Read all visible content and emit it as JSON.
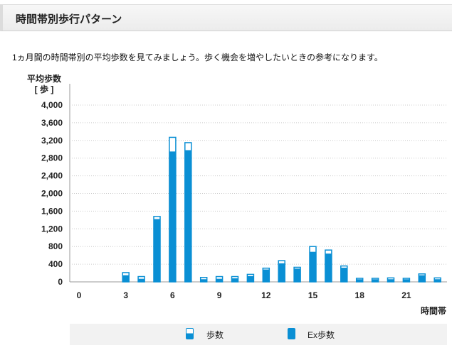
{
  "header": {
    "title": "時間帯別歩行パターン"
  },
  "description": "1ヵ月間の時間帯別の平均歩数を見てみましょう。歩く機会を増やしたいときの参考になります。",
  "colors": {
    "bar_fill": "#0a8fd4",
    "bar_top": "#ffffff",
    "grid": "#cccccc",
    "legend_bg": "#f2f2f2"
  },
  "chart_data": {
    "type": "bar",
    "title": "",
    "ylabel": "平均歩数",
    "ylabel_unit": "[ 歩 ]",
    "xlabel": "時間帯",
    "ylim": [
      0,
      4000
    ],
    "yticks": [
      "0",
      "400",
      "800",
      "1,200",
      "1,600",
      "2,000",
      "2,400",
      "2,800",
      "3,200",
      "3,600",
      "4,000"
    ],
    "ytick_values": [
      0,
      400,
      800,
      1200,
      1600,
      2000,
      2400,
      2800,
      3200,
      3600,
      4000
    ],
    "xticks": [
      "0",
      "3",
      "6",
      "9",
      "12",
      "15",
      "18",
      "21"
    ],
    "xtick_values": [
      0,
      3,
      6,
      9,
      12,
      15,
      18,
      21
    ],
    "grid": true,
    "legend_position": "bottom",
    "x": [
      0,
      1,
      2,
      3,
      4,
      5,
      6,
      7,
      8,
      9,
      10,
      11,
      12,
      13,
      14,
      15,
      16,
      17,
      18,
      19,
      20,
      21,
      22,
      23
    ],
    "series": [
      {
        "name": "歩数",
        "values": [
          0,
          0,
          0,
          210,
          120,
          1480,
          3270,
          3150,
          100,
          120,
          120,
          170,
          310,
          480,
          330,
          800,
          720,
          360,
          80,
          80,
          90,
          80,
          180,
          90
        ]
      },
      {
        "name": "Ex歩数",
        "values": [
          0,
          0,
          0,
          150,
          70,
          1420,
          2950,
          2980,
          60,
          70,
          80,
          130,
          280,
          420,
          300,
          680,
          640,
          320,
          60,
          60,
          60,
          60,
          150,
          60
        ]
      }
    ]
  }
}
